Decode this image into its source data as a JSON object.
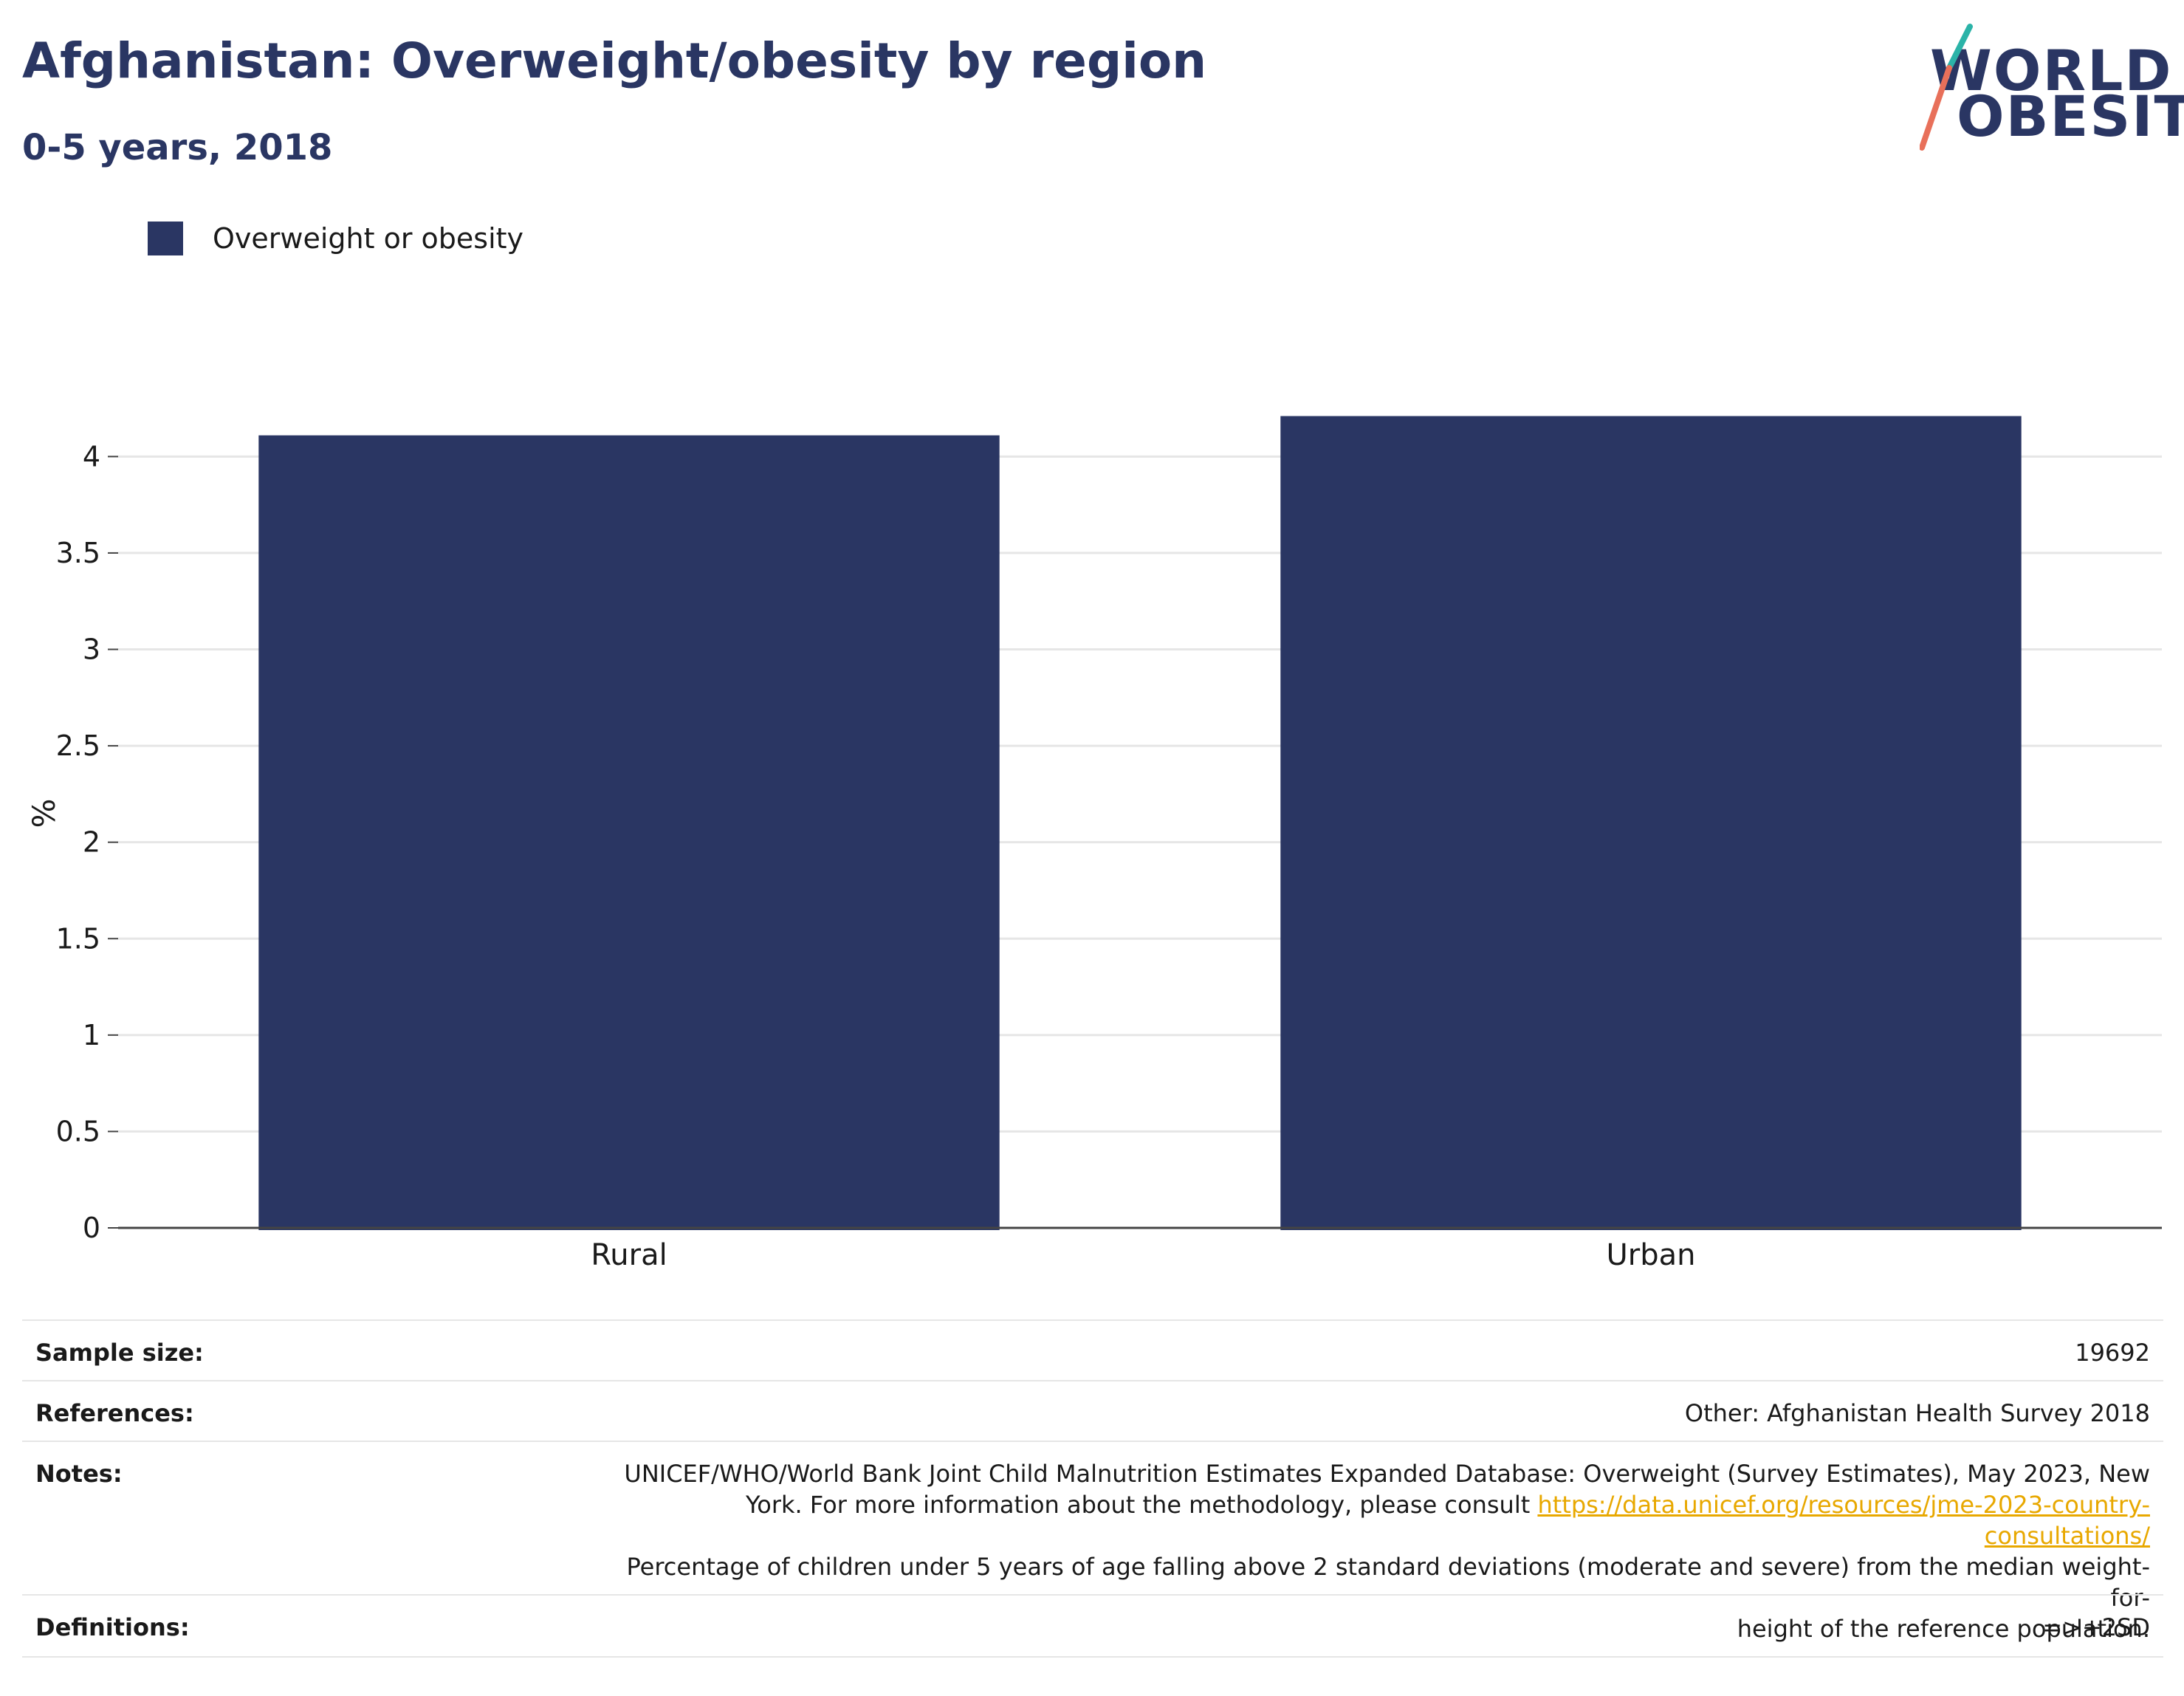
{
  "header": {
    "title": "Afghanistan: Overweight/obesity by region",
    "subtitle": "0-5 years, 2018"
  },
  "logo": {
    "line1": "WORLD",
    "line2": "OBESITY",
    "colors": {
      "text": "#2a3663",
      "teal": "#2bb3a8",
      "coral": "#e8705a"
    }
  },
  "chart_data": {
    "type": "bar",
    "categories": [
      "Rural",
      "Urban"
    ],
    "series": [
      {
        "name": "Overweight or obesity",
        "values": [
          4.11,
          4.21
        ],
        "color": "#2a3663"
      }
    ],
    "ylabel": "%",
    "xlabel": "",
    "ylim": [
      0,
      4.3
    ],
    "yticks": [
      0,
      0.5,
      1,
      1.5,
      2,
      2.5,
      3,
      3.5,
      4
    ],
    "ytick_labels": [
      "0",
      "0.5",
      "1",
      "1.5",
      "2",
      "2.5",
      "3",
      "3.5",
      "4"
    ],
    "grid": true,
    "legend_position": "top-left"
  },
  "meta": {
    "sample_size_label": "Sample size:",
    "sample_size_value": "19692",
    "references_label": "References:",
    "references_value": "Other: Afghanistan Health Survey 2018",
    "notes_label": "Notes:",
    "notes_line1": "UNICEF/WHO/World Bank Joint Child Malnutrition Estimates Expanded Database: Overweight (Survey Estimates), May 2023, New",
    "notes_line2_prefix": "York. For more information about the methodology, please consult ",
    "notes_link": "https://data.unicef.org/resources/jme-2023-country-consultations/",
    "notes_line3": "Percentage of children under 5 years of age falling above 2 standard deviations (moderate and severe) from the median weight-for-",
    "notes_line4": "height of the reference population.",
    "definitions_label": "Definitions:",
    "definitions_value": "=>+2SD"
  }
}
